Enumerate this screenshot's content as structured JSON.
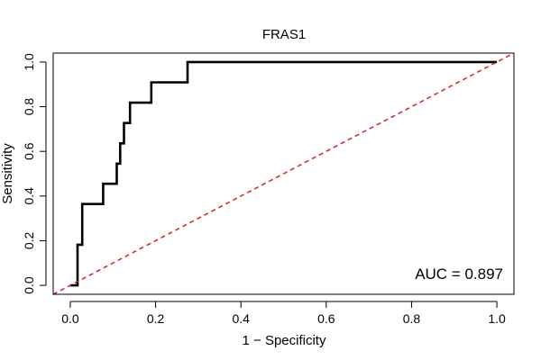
{
  "chart_data": {
    "type": "line",
    "title": "FRAS1",
    "xlabel": "1 − Specificity",
    "ylabel": "Sensitivity",
    "xlim": [
      -0.04,
      1.04
    ],
    "ylim": [
      -0.04,
      1.04
    ],
    "x_ticks": [
      0.0,
      0.2,
      0.4,
      0.6,
      0.8,
      1.0
    ],
    "y_ticks": [
      0.0,
      0.2,
      0.4,
      0.6,
      0.8,
      1.0
    ],
    "x_tick_labels": [
      "0.0",
      "0.2",
      "0.4",
      "0.6",
      "0.8",
      "1.0"
    ],
    "y_tick_labels": [
      "0.0",
      "0.2",
      "0.4",
      "0.6",
      "0.8",
      "1.0"
    ],
    "grid": false,
    "series": [
      {
        "role": "roc-curve",
        "color": "#000000",
        "style": "solid",
        "x": [
          0.0,
          0.017,
          0.017,
          0.023,
          0.023,
          0.028,
          0.028,
          0.077,
          0.077,
          0.109,
          0.109,
          0.117,
          0.117,
          0.126,
          0.126,
          0.133,
          0.133,
          0.14,
          0.14,
          0.19,
          0.19,
          0.275,
          0.275,
          1.0
        ],
        "y": [
          0.0,
          0.0,
          0.182,
          0.182,
          0.182,
          0.182,
          0.364,
          0.364,
          0.455,
          0.455,
          0.545,
          0.545,
          0.636,
          0.636,
          0.727,
          0.727,
          0.727,
          0.727,
          0.818,
          0.818,
          0.909,
          0.909,
          1.0,
          1.0
        ]
      },
      {
        "role": "reference-diagonal",
        "color": "#e41a1c",
        "style": "dashed",
        "x": [
          -0.04,
          1.04
        ],
        "y": [
          -0.04,
          1.04
        ]
      }
    ],
    "annotations": [
      {
        "text": "AUC = 0.897",
        "placement": "bottom-right"
      }
    ]
  }
}
